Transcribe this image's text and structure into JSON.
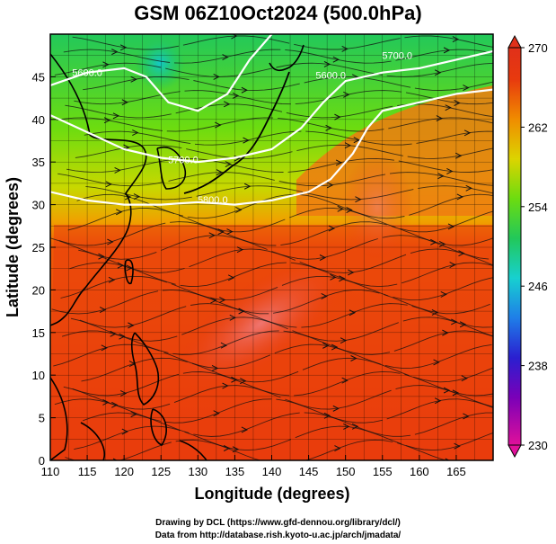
{
  "title": "GSM 06Z10Oct2024 (500.0hPa)",
  "chart_data": {
    "type": "heatmap",
    "title": "GSM 06Z10Oct2024 (500.0hPa)",
    "xlabel": "Longitude (degrees)",
    "ylabel": "Latitude  (degrees)",
    "xlim": [
      110,
      170
    ],
    "ylim": [
      0,
      50
    ],
    "x_ticks": [
      "110",
      "115",
      "120",
      "125",
      "130",
      "135",
      "140",
      "145",
      "150",
      "155",
      "160",
      "165"
    ],
    "y_ticks": [
      "0",
      "5",
      "10",
      "15",
      "20",
      "25",
      "30",
      "35",
      "40",
      "45"
    ],
    "colorbar": {
      "min": 230,
      "max": 270,
      "tick_labels": [
        "270",
        "262",
        "254",
        "246",
        "238",
        "230"
      ],
      "colors": [
        "#e0109a",
        "#7a00b8",
        "#2a1fd0",
        "#1f7ee8",
        "#17d0d0",
        "#22c85a",
        "#6cdc10",
        "#dcd400",
        "#f08c00",
        "#e83a0e",
        "#e0301a"
      ]
    },
    "contours": [
      {
        "label": "5600.0",
        "points": [
          [
            110,
            44
          ],
          [
            115,
            45.5
          ],
          [
            120,
            46
          ],
          [
            123,
            45
          ],
          [
            126,
            42
          ],
          [
            130,
            41
          ],
          [
            134,
            43
          ],
          [
            137,
            47
          ],
          [
            140,
            50
          ]
        ]
      },
      {
        "label": "5700.0",
        "points": [
          [
            110,
            40.5
          ],
          [
            115,
            38.5
          ],
          [
            120,
            36.5
          ],
          [
            125,
            35.5
          ],
          [
            130,
            35
          ],
          [
            135,
            35.5
          ],
          [
            140,
            36.5
          ],
          [
            144,
            39
          ],
          [
            147,
            42
          ],
          [
            150,
            44.5
          ],
          [
            155,
            45.5
          ],
          [
            160,
            46
          ],
          [
            165,
            47
          ],
          [
            170,
            48
          ]
        ]
      },
      {
        "label": "5800.0",
        "points": [
          [
            110,
            31.5
          ],
          [
            115,
            30.5
          ],
          [
            120,
            30
          ],
          [
            125,
            30
          ],
          [
            130,
            30.3
          ],
          [
            135,
            30
          ],
          [
            140,
            30.5
          ],
          [
            145,
            31.5
          ],
          [
            148,
            33
          ],
          [
            151,
            36
          ],
          [
            153,
            39
          ],
          [
            155,
            41
          ],
          [
            160,
            42
          ],
          [
            165,
            43
          ],
          [
            170,
            43.5
          ]
        ]
      }
    ],
    "contour_labels": [
      "5600.0",
      "5700.0",
      "5800.0",
      "5600.0",
      "5700.0"
    ],
    "map": "East Asia / Western Pacific coastlines with streamlines of 500hPa wind and temperature shading"
  },
  "credits": {
    "line1": "Drawing by DCL (https://www.gfd-dennou.org/library/dcl/)",
    "line2": "Data from http://database.rish.kyoto-u.ac.jp/arch/jmadata/"
  }
}
